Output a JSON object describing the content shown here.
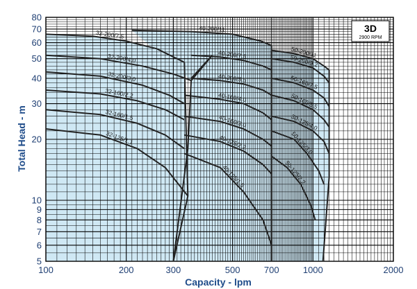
{
  "chart_data": {
    "type": "line",
    "title": "3D",
    "subtitle": "2900 RPM",
    "xlabel": "Capacity - lpm",
    "ylabel": "Total Head - m",
    "x_scale": "log",
    "y_scale": "log",
    "xlim": [
      100,
      2000
    ],
    "ylim": [
      5,
      80
    ],
    "x_ticks": [
      100,
      200,
      300,
      500,
      700,
      1000,
      2000
    ],
    "y_ticks": [
      5,
      6,
      7,
      8,
      9,
      10,
      20,
      30,
      40,
      50,
      60,
      70,
      80
    ],
    "grid": true,
    "colors": {
      "fill": "#cfe8f4",
      "curve": "#222222",
      "grid": "#000000",
      "axis_text": "#1f4c8a"
    },
    "series": [
      {
        "name": "32-200/7.5",
        "x": [
          100,
          150,
          200,
          260,
          330
        ],
        "y": [
          66,
          64.5,
          61,
          56,
          48
        ]
      },
      {
        "name": "32-200/4.0",
        "x": [
          100,
          160,
          230,
          300,
          350
        ],
        "y": [
          52,
          50,
          46,
          42,
          39
        ]
      },
      {
        "name": "32-200/3.0",
        "x": [
          100,
          160,
          230,
          290,
          330
        ],
        "y": [
          43,
          41,
          37,
          33,
          30
        ]
      },
      {
        "name": "32-160/2.2",
        "x": [
          100,
          160,
          220,
          280,
          330
        ],
        "y": [
          35,
          33.5,
          31,
          28,
          25
        ]
      },
      {
        "name": "32-160/1.5",
        "x": [
          100,
          160,
          220,
          280,
          330
        ],
        "y": [
          28,
          26.5,
          24,
          21,
          18
        ]
      },
      {
        "name": "32-125/1.1",
        "x": [
          100,
          160,
          220,
          280,
          340
        ],
        "y": [
          22.5,
          21,
          18,
          14.5,
          10.5
        ]
      },
      {
        "name": "40-200/11",
        "x": [
          210,
          350,
          500,
          640,
          700
        ],
        "y": [
          69,
          68,
          66,
          61,
          58
        ]
      },
      {
        "name": "40-200/7.5",
        "x": [
          350,
          450,
          550,
          650,
          700
        ],
        "y": [
          52,
          51,
          49,
          46,
          44
        ]
      },
      {
        "name": "40-200/5.5",
        "x": [
          350,
          450,
          550,
          650,
          700
        ],
        "y": [
          40,
          39,
          37.5,
          35,
          33
        ]
      },
      {
        "name": "40-160/4.0",
        "x": [
          330,
          450,
          550,
          650,
          700
        ],
        "y": [
          33,
          31.5,
          30,
          27,
          25
        ]
      },
      {
        "name": "40-160/3.0",
        "x": [
          330,
          450,
          550,
          650,
          700
        ],
        "y": [
          26,
          24.5,
          22.5,
          20,
          18.5
        ]
      },
      {
        "name": "40-125/2.2",
        "x": [
          330,
          450,
          550,
          650,
          700
        ],
        "y": [
          21,
          19.5,
          17.5,
          15,
          13.5
        ]
      },
      {
        "name": "40-125/1.5",
        "x": [
          330,
          450,
          550,
          650,
          700
        ],
        "y": [
          17,
          14.5,
          11,
          8,
          6
        ]
      },
      {
        "name": "50-200/11",
        "x": [
          700,
          850,
          1000,
          1100,
          1150
        ],
        "y": [
          55,
          53,
          50,
          46,
          44
        ]
      },
      {
        "name": "50-200/9.2",
        "x": [
          700,
          850,
          1000,
          1100,
          1150
        ],
        "y": [
          50,
          48,
          45,
          41,
          38
        ]
      },
      {
        "name": "50-160/7.5",
        "x": [
          700,
          850,
          1000,
          1100,
          1150
        ],
        "y": [
          40,
          38,
          35,
          32,
          29
        ]
      },
      {
        "name": "50-160/5.5",
        "x": [
          700,
          850,
          1000,
          1100,
          1150
        ],
        "y": [
          33,
          31,
          28,
          25,
          23
        ]
      },
      {
        "name": "50-125/4.0",
        "x": [
          700,
          850,
          1000,
          1100,
          1150
        ],
        "y": [
          26,
          24.5,
          22,
          19.5,
          17
        ]
      },
      {
        "name": "50-125/3.0",
        "x": [
          700,
          850,
          950,
          1050,
          1100
        ],
        "y": [
          22,
          20,
          17,
          14,
          12
        ]
      },
      {
        "name": "50-125/2.2",
        "x": [
          700,
          800,
          900,
          980,
          1020
        ],
        "y": [
          16.5,
          14.5,
          12,
          9.5,
          8
        ]
      }
    ]
  }
}
